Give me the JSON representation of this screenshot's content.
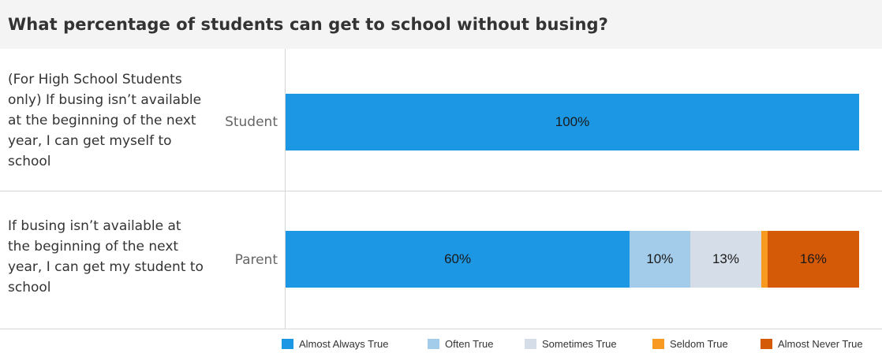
{
  "title": "What percentage of students can get to school without busing?",
  "chart_data": {
    "type": "bar",
    "orientation": "horizontal",
    "stacked": true,
    "xlim": [
      0,
      100
    ],
    "grid": true,
    "legend_position": "bottom-right",
    "rows": [
      {
        "question": "(For High School Students only) If busing isn’t available at the beginning of the next year, I can get myself to school",
        "category": "Student",
        "values": [
          100,
          0,
          0,
          0,
          0
        ],
        "labels": [
          "100%",
          "",
          "",
          "",
          ""
        ]
      },
      {
        "question": "If busing isn’t available at the beginning of the next year, I can get my student to school",
        "category": "Parent",
        "values": [
          60,
          10.5,
          12.5,
          1,
          16
        ],
        "labels": [
          "60%",
          "10%",
          "13%",
          "",
          "16%"
        ]
      }
    ],
    "series": [
      {
        "name": "Almost Always True",
        "color": "#1c97e3"
      },
      {
        "name": "Often True",
        "color": "#a3cceb"
      },
      {
        "name": "Sometimes True",
        "color": "#d5dde8"
      },
      {
        "name": "Seldom True",
        "color": "#f89a1f"
      },
      {
        "name": "Almost Never True",
        "color": "#d55a08"
      }
    ]
  }
}
